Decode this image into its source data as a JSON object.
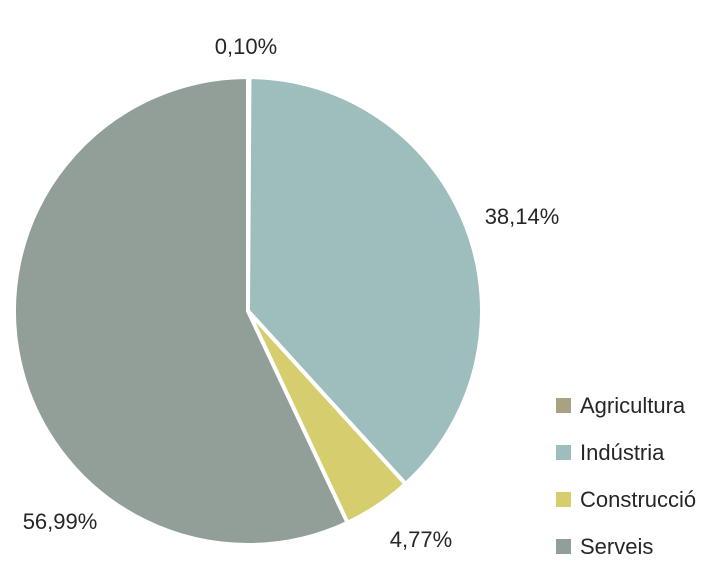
{
  "chart_data": {
    "type": "pie",
    "categories": [
      "Agricultura",
      "Indústria",
      "Construcció",
      "Serveis"
    ],
    "values": [
      0.1,
      38.14,
      4.77,
      56.99
    ],
    "value_labels": [
      "0,10%",
      "38,14%",
      "4,77%",
      "56,99%"
    ],
    "colors": [
      "#A8A283",
      "#9EBDBD",
      "#D5CD6E",
      "#929F98"
    ],
    "legend_placement": "bottom-right",
    "title": ""
  }
}
